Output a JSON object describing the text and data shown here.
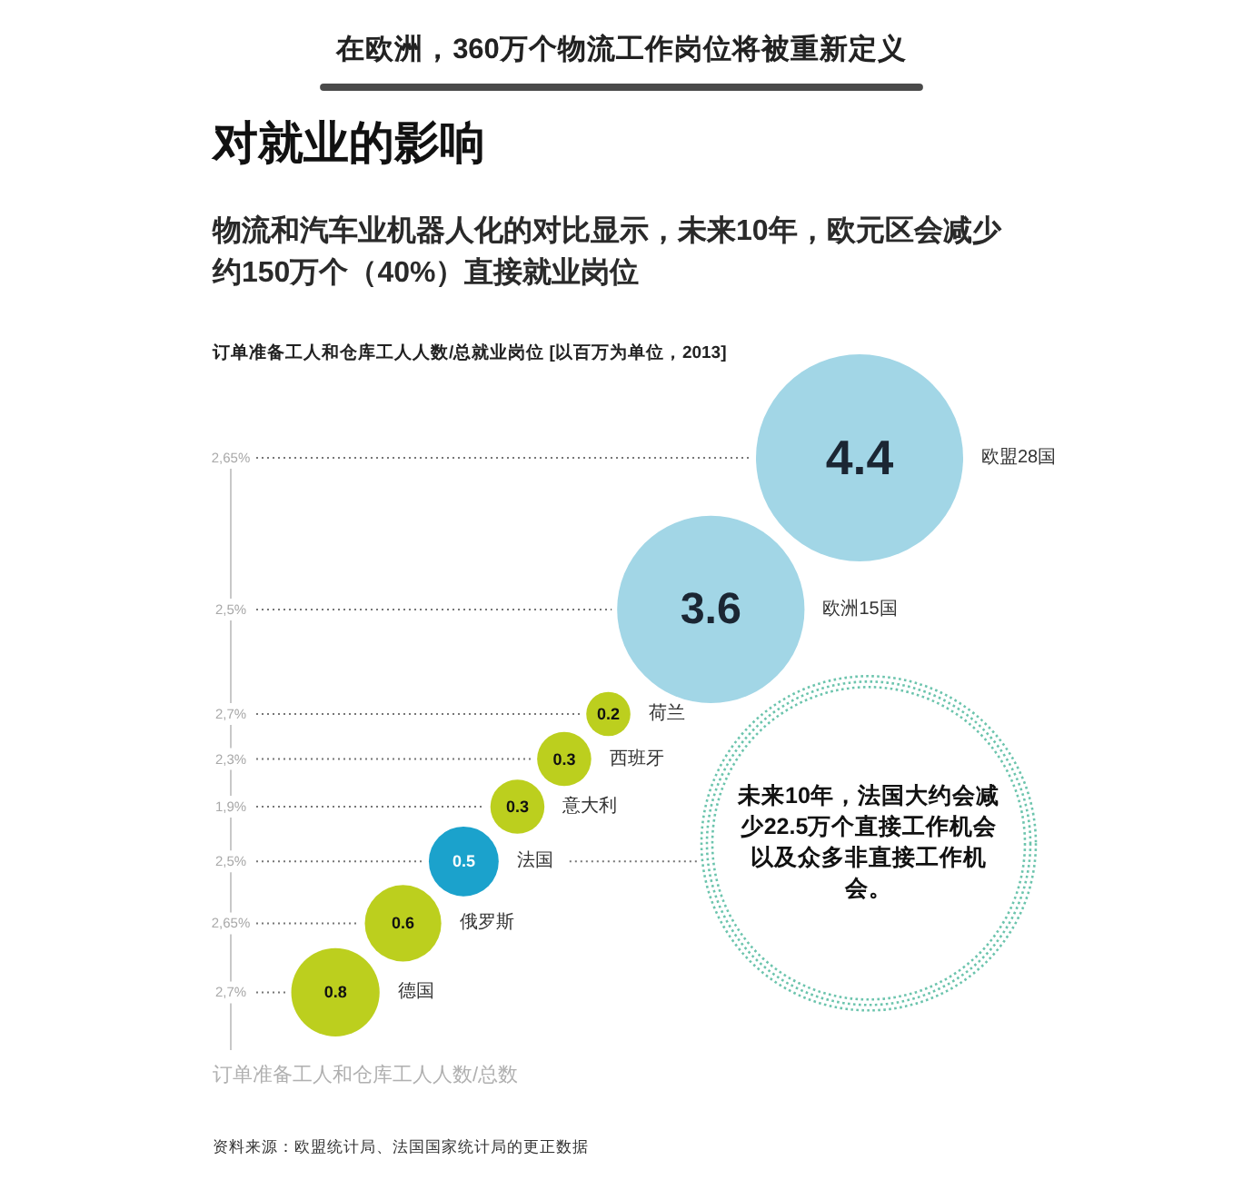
{
  "chart_data": {
    "type": "other",
    "title": "在欧洲，360万个物流工作岗位将被重新定义",
    "subtitle": "对就业的影响",
    "ylabel": "订单准备工人和仓库工人人数/总数",
    "annotations": [
      "物流和汽车业机器人化的对比显示，未来10年，欧元区会减少约150万个（40%）直接就业岗位",
      "订单准备工人和仓库工人人数/总就业岗位 [以百万为单位，2013]",
      {
        "text": "未来10年，法国大约会减少22.5万个直接工作机会以及众多非直接工作机会。",
        "x": "法国"
      },
      "资料来源：欧盟统计局、法国国家统计局的更正数据"
    ],
    "categories": [
      "欧盟28国",
      "欧洲15国",
      "荷兰",
      "西班牙",
      "意大利",
      "法国",
      "俄罗斯",
      "德国"
    ],
    "y2_categories": [
      "2,65%",
      "2,5%",
      "2,7%",
      "2,3%",
      "1,9%",
      "2,5%",
      "2,65%",
      "2,7%"
    ],
    "data_labels": true,
    "series": [
      {
        "values": [
          4.4,
          3.6,
          0.2,
          0.3,
          0.3,
          0.5,
          0.6,
          0.8
        ],
        "colors": [
          "#a2d6e6",
          "#a2d6e6",
          "#bccf1e",
          "#bccf1e",
          "#bccf1e",
          "#1ba2cc",
          "#bccf1e",
          "#bccf1e"
        ]
      }
    ]
  }
}
